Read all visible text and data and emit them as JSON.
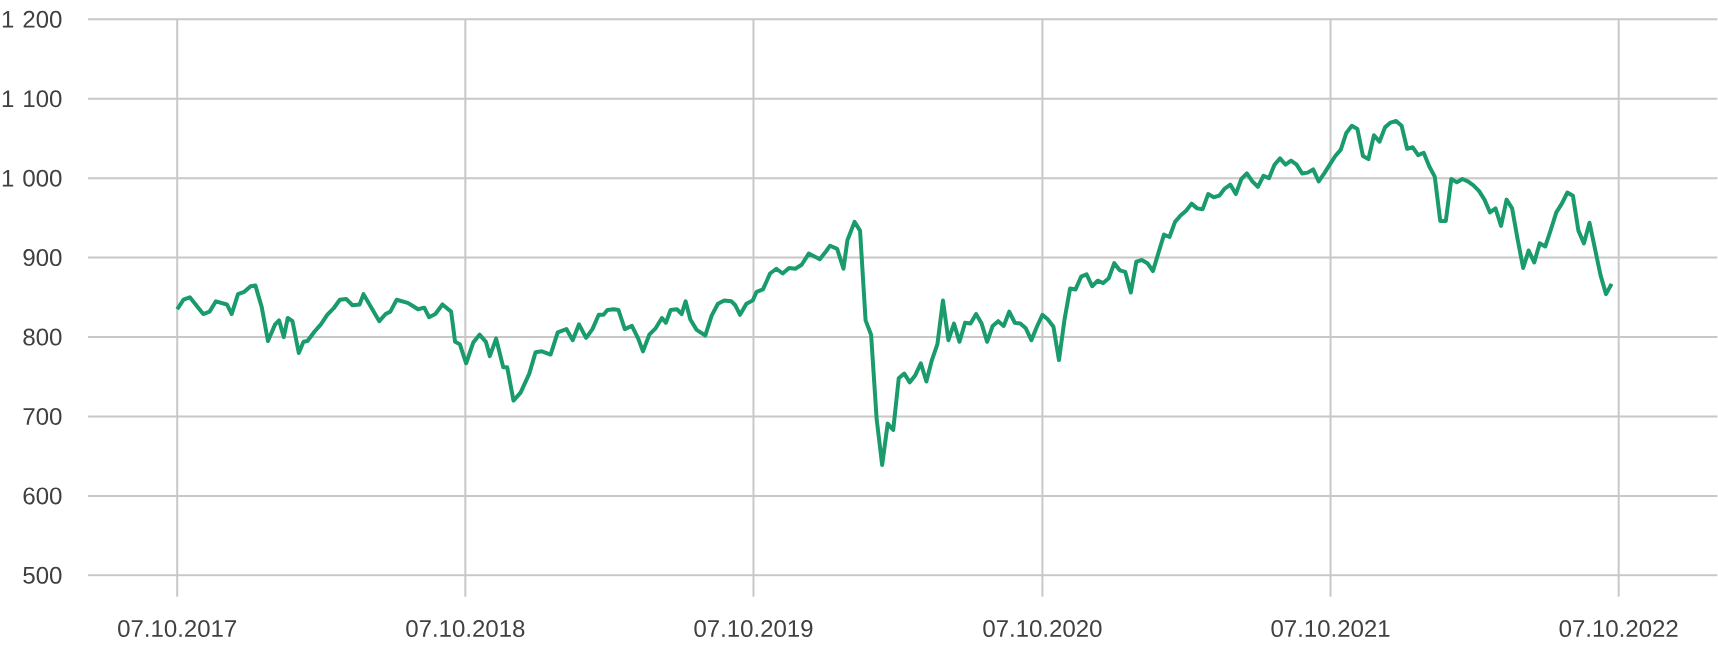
{
  "chart_data": {
    "type": "line",
    "color": "#1a9b6b",
    "grid": true,
    "marker": "none",
    "line_style": "solid",
    "xlim": [
      "2017-06-16",
      "2023-02-09"
    ],
    "ylim": [
      500,
      1200
    ],
    "xticks": [
      {
        "value": "2017-10-07",
        "label": "07.10.2017"
      },
      {
        "value": "2018-10-07",
        "label": "07.10.2018"
      },
      {
        "value": "2019-10-07",
        "label": "07.10.2019"
      },
      {
        "value": "2020-10-07",
        "label": "07.10.2020"
      },
      {
        "value": "2021-10-07",
        "label": "07.10.2021"
      },
      {
        "value": "2022-10-07",
        "label": "07.10.2022"
      }
    ],
    "yticks": [
      500,
      600,
      700,
      800,
      900,
      {
        "value": 1000,
        "label": "1 000"
      },
      {
        "value": 1100,
        "label": "1 100"
      },
      {
        "value": 1200,
        "label": "1 200"
      }
    ],
    "x": [
      "2017-10-07",
      "2017-10-15",
      "2017-10-23",
      "2017-11-09",
      "2017-11-17",
      "2017-11-25",
      "2017-12-09",
      "2017-12-15",
      "2017-12-23",
      "2017-12-31",
      "2018-01-08",
      "2018-01-14",
      "2018-01-22",
      "2018-01-30",
      "2018-02-08",
      "2018-02-13",
      "2018-02-19",
      "2018-02-24",
      "2018-03-02",
      "2018-03-10",
      "2018-03-16",
      "2018-03-21",
      "2018-03-30",
      "2018-04-07",
      "2018-04-15",
      "2018-04-23",
      "2018-05-01",
      "2018-05-09",
      "2018-05-17",
      "2018-05-26",
      "2018-05-31",
      "2018-06-20",
      "2018-06-28",
      "2018-07-04",
      "2018-07-12",
      "2018-07-26",
      "2018-07-31",
      "2018-08-08",
      "2018-08-16",
      "2018-08-22",
      "2018-08-30",
      "2018-09-08",
      "2018-09-19",
      "2018-09-24",
      "2018-09-30",
      "2018-10-08",
      "2018-10-17",
      "2018-10-25",
      "2018-11-02",
      "2018-11-07",
      "2018-11-15",
      "2018-11-24",
      "2018-11-29",
      "2018-12-07",
      "2018-12-16",
      "2018-12-27",
      "2019-01-04",
      "2019-01-12",
      "2019-01-23",
      "2019-02-01",
      "2019-02-12",
      "2019-02-20",
      "2019-02-28",
      "2019-03-09",
      "2019-03-17",
      "2019-03-25",
      "2019-03-31",
      "2019-04-05",
      "2019-04-13",
      "2019-04-19",
      "2019-04-27",
      "2019-05-06",
      "2019-05-14",
      "2019-05-20",
      "2019-05-28",
      "2019-06-05",
      "2019-06-13",
      "2019-06-18",
      "2019-06-24",
      "2019-07-02",
      "2019-07-08",
      "2019-07-13",
      "2019-07-19",
      "2019-07-27",
      "2019-08-07",
      "2019-08-15",
      "2019-08-23",
      "2019-08-31",
      "2019-09-09",
      "2019-09-14",
      "2019-09-20",
      "2019-09-28",
      "2019-10-06",
      "2019-10-11",
      "2019-10-19",
      "2019-10-28",
      "2019-11-05",
      "2019-11-13",
      "2019-11-21",
      "2019-11-29",
      "2019-12-07",
      "2019-12-16",
      "2019-12-24",
      "2019-12-30",
      "2020-01-07",
      "2020-01-12",
      "2020-01-21",
      "2020-01-29",
      "2020-02-03",
      "2020-02-12",
      "2020-02-19",
      "2020-02-26",
      "2020-03-04",
      "2020-03-11",
      "2020-03-18",
      "2020-03-25",
      "2020-04-01",
      "2020-04-08",
      "2020-04-15",
      "2020-04-22",
      "2020-04-29",
      "2020-05-06",
      "2020-05-13",
      "2020-05-20",
      "2020-05-27",
      "2020-06-03",
      "2020-06-10",
      "2020-06-17",
      "2020-06-24",
      "2020-07-01",
      "2020-07-08",
      "2020-07-15",
      "2020-07-22",
      "2020-07-29",
      "2020-08-05",
      "2020-08-12",
      "2020-08-19",
      "2020-08-26",
      "2020-09-02",
      "2020-09-09",
      "2020-09-16",
      "2020-09-23",
      "2020-09-30",
      "2020-10-07",
      "2020-10-14",
      "2020-10-21",
      "2020-10-28",
      "2020-11-04",
      "2020-11-11",
      "2020-11-18",
      "2020-11-25",
      "2020-12-02",
      "2020-12-09",
      "2020-12-16",
      "2020-12-23",
      "2020-12-30",
      "2021-01-06",
      "2021-01-13",
      "2021-01-20",
      "2021-01-27",
      "2021-02-03",
      "2021-02-10",
      "2021-02-17",
      "2021-02-24",
      "2021-03-03",
      "2021-03-10",
      "2021-03-17",
      "2021-03-24",
      "2021-03-31",
      "2021-04-07",
      "2021-04-14",
      "2021-04-21",
      "2021-04-28",
      "2021-05-05",
      "2021-05-12",
      "2021-05-19",
      "2021-05-26",
      "2021-06-02",
      "2021-06-09",
      "2021-06-16",
      "2021-06-23",
      "2021-06-30",
      "2021-07-07",
      "2021-07-14",
      "2021-07-21",
      "2021-07-28",
      "2021-08-04",
      "2021-08-11",
      "2021-08-18",
      "2021-08-25",
      "2021-09-01",
      "2021-09-08",
      "2021-09-15",
      "2021-09-22",
      "2021-09-29",
      "2021-10-06",
      "2021-10-13",
      "2021-10-20",
      "2021-10-27",
      "2021-11-03",
      "2021-11-10",
      "2021-11-17",
      "2021-11-24",
      "2021-12-01",
      "2021-12-08",
      "2021-12-15",
      "2021-12-22",
      "2021-12-29",
      "2022-01-05",
      "2022-01-12",
      "2022-01-19",
      "2022-01-26",
      "2022-02-02",
      "2022-02-09",
      "2022-02-16",
      "2022-02-23",
      "2022-03-02",
      "2022-03-09",
      "2022-03-16",
      "2022-03-23",
      "2022-03-30",
      "2022-04-06",
      "2022-04-13",
      "2022-04-20",
      "2022-04-27",
      "2022-05-04",
      "2022-05-11",
      "2022-05-18",
      "2022-05-25",
      "2022-06-01",
      "2022-06-08",
      "2022-06-15",
      "2022-06-22",
      "2022-06-29",
      "2022-07-06",
      "2022-07-13",
      "2022-07-20",
      "2022-07-27",
      "2022-08-03",
      "2022-08-10",
      "2022-08-17",
      "2022-08-24",
      "2022-08-31",
      "2022-09-07",
      "2022-09-14",
      "2022-09-21",
      "2022-09-28"
    ],
    "values": [
      835,
      847,
      850,
      829,
      832,
      845,
      841,
      829,
      854,
      857,
      864,
      865,
      838,
      795,
      816,
      821,
      800,
      824,
      820,
      780,
      794,
      795,
      807,
      816,
      828,
      836,
      847,
      848,
      840,
      841,
      854,
      820,
      829,
      832,
      847,
      843,
      840,
      835,
      837,
      825,
      829,
      841,
      832,
      794,
      791,
      767,
      793,
      803,
      794,
      776,
      798,
      762,
      762,
      720,
      730,
      754,
      781,
      782,
      778,
      806,
      810,
      796,
      816,
      799,
      810,
      828,
      828,
      834,
      835,
      834,
      810,
      814,
      798,
      782,
      803,
      811,
      824,
      818,
      834,
      835,
      829,
      845,
      822,
      809,
      802,
      827,
      842,
      846,
      845,
      840,
      828,
      842,
      846,
      857,
      860,
      880,
      886,
      880,
      887,
      886,
      891,
      905,
      901,
      898,
      908,
      915,
      911,
      886,
      922,
      945,
      934,
      821,
      803,
      697,
      639,
      691,
      683,
      748,
      754,
      743,
      752,
      767,
      744,
      771,
      791,
      846,
      796,
      817,
      794,
      818,
      817,
      829,
      817,
      794,
      814,
      820,
      814,
      832,
      818,
      817,
      811,
      796,
      813,
      828,
      822,
      813,
      771,
      822,
      861,
      860,
      876,
      879,
      864,
      871,
      868,
      874,
      893,
      884,
      882,
      856,
      895,
      897,
      893,
      883,
      906,
      929,
      926,
      945,
      953,
      959,
      968,
      962,
      961,
      980,
      976,
      978,
      987,
      992,
      980,
      999,
      1006,
      996,
      989,
      1003,
      1000,
      1017,
      1025,
      1017,
      1022,
      1017,
      1006,
      1007,
      1011,
      996,
      1006,
      1017,
      1028,
      1036,
      1057,
      1066,
      1062,
      1028,
      1024,
      1054,
      1046,
      1064,
      1070,
      1072,
      1066,
      1037,
      1039,
      1029,
      1032,
      1015,
      1002,
      946,
      946,
      999,
      995,
      999,
      996,
      991,
      984,
      973,
      957,
      962,
      940,
      973,
      962,
      923,
      887,
      909,
      894,
      918,
      914,
      935,
      957,
      968,
      982,
      978,
      934,
      918,
      944,
      911,
      878,
      854,
      867
    ]
  }
}
